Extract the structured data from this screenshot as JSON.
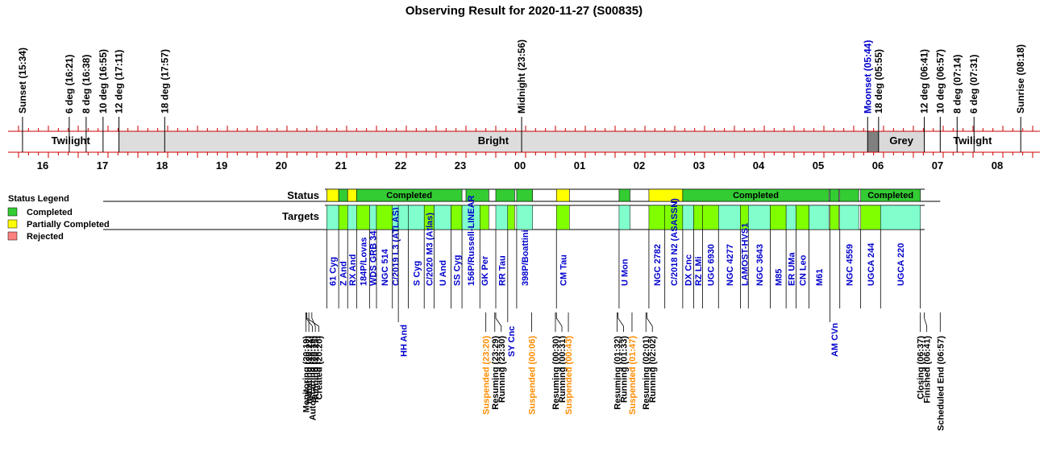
{
  "chart_data": {
    "type": "timeline",
    "title": "Observing Result for 2020-11-27 (S00835)",
    "time_axis": {
      "start": "15:34",
      "end": "08:18",
      "hour_labels": [
        "16",
        "17",
        "18",
        "19",
        "20",
        "21",
        "22",
        "23",
        "00",
        "01",
        "02",
        "03",
        "04",
        "05",
        "06",
        "07",
        "08"
      ]
    },
    "sky_events": [
      {
        "label": "Sunset (15:34)",
        "time": "15:34",
        "color": "#000000"
      },
      {
        "label": "6 deg (16:21)",
        "time": "16:21",
        "color": "#000000"
      },
      {
        "label": "8 deg (16:38)",
        "time": "16:38",
        "color": "#000000"
      },
      {
        "label": "10 deg (16:55)",
        "time": "16:55",
        "color": "#000000"
      },
      {
        "label": "12 deg (17:11)",
        "time": "17:11",
        "color": "#000000"
      },
      {
        "label": "18 deg (17:57)",
        "time": "17:57",
        "color": "#000000"
      },
      {
        "label": "Midnight (23:56)",
        "time": "23:56",
        "color": "#000000"
      },
      {
        "label": "Moonset (05:44)",
        "time": "05:44",
        "color": "#0000cc"
      },
      {
        "label": "18 deg (05:55)",
        "time": "05:55",
        "color": "#000000"
      },
      {
        "label": "12 deg (06:41)",
        "time": "06:41",
        "color": "#000000"
      },
      {
        "label": "10 deg (06:57)",
        "time": "06:57",
        "color": "#000000"
      },
      {
        "label": "8 deg (07:14)",
        "time": "07:14",
        "color": "#000000"
      },
      {
        "label": "6 deg (07:31)",
        "time": "07:31",
        "color": "#000000"
      },
      {
        "label": "Sunrise (08:18)",
        "time": "08:18",
        "color": "#000000"
      }
    ],
    "sky_phases": [
      {
        "label": "Twilight",
        "start": "15:34",
        "end": "17:11",
        "color": "#ffffff"
      },
      {
        "label": "Bright",
        "start": "17:11",
        "end": "05:44",
        "color": "#dddddd"
      },
      {
        "label": "",
        "start": "05:44",
        "end": "05:55",
        "color": "#808080"
      },
      {
        "label": "Grey",
        "start": "05:55",
        "end": "06:41",
        "color": "#d9d9d9"
      },
      {
        "label": "Twilight",
        "start": "06:41",
        "end": "08:18",
        "color": "#ffffff"
      }
    ],
    "row_labels": {
      "status": "Status",
      "targets": "Targets"
    },
    "legend": {
      "title": "Status Legend",
      "placement": "left",
      "items": [
        {
          "label": "Completed",
          "color": "#33cc33"
        },
        {
          "label": "Partially Completed",
          "color": "#ffff00"
        },
        {
          "label": "Rejected",
          "color": "#ff8080"
        }
      ]
    },
    "status_blocks": [
      {
        "start": "20:40",
        "end": "20:52",
        "status": "Partially Completed",
        "label": ""
      },
      {
        "start": "20:52",
        "end": "21:01",
        "status": "Completed",
        "label": ""
      },
      {
        "start": "21:01",
        "end": "21:10",
        "status": "Partially Completed",
        "label": ""
      },
      {
        "start": "21:10",
        "end": "22:56",
        "status": "Completed",
        "label": "Completed"
      },
      {
        "start": "23:00",
        "end": "23:23",
        "status": "Completed",
        "label": ""
      },
      {
        "start": "23:30",
        "end": "23:49",
        "status": "Completed",
        "label": ""
      },
      {
        "start": "23:51",
        "end": "00:07",
        "status": "Completed",
        "label": ""
      },
      {
        "start": "00:31",
        "end": "00:44",
        "status": "Partially Completed",
        "label": ""
      },
      {
        "start": "01:34",
        "end": "01:45",
        "status": "Completed",
        "label": ""
      },
      {
        "start": "02:04",
        "end": "02:38",
        "status": "Partially Completed",
        "label": ""
      },
      {
        "start": "02:38",
        "end": "05:05",
        "status": "Completed",
        "label": "Completed"
      },
      {
        "start": "05:06",
        "end": "05:15",
        "status": "Completed",
        "label": ""
      },
      {
        "start": "05:16",
        "end": "05:35",
        "status": "Completed",
        "label": ""
      },
      {
        "start": "05:37",
        "end": "06:37",
        "status": "Completed",
        "label": "Completed"
      }
    ],
    "targets": [
      {
        "name": "61 Cyg",
        "start": "20:40",
        "end": "20:52",
        "fill": "#80ffcc",
        "label_row": "upper"
      },
      {
        "name": "Z And",
        "start": "20:52",
        "end": "21:01",
        "fill": "#80ff00",
        "label_row": "upper"
      },
      {
        "name": "RX And",
        "start": "21:01",
        "end": "21:10",
        "fill": "#80ffcc",
        "label_row": "upper"
      },
      {
        "name": "184P/Lovas",
        "start": "21:10",
        "end": "21:23",
        "fill": "#80ff00",
        "label_row": "upper"
      },
      {
        "name": "WDS GRB 34",
        "start": "21:23",
        "end": "21:30",
        "fill": "#80ffcc",
        "label_row": "upper"
      },
      {
        "name": "NGC 514",
        "start": "21:30",
        "end": "21:46",
        "fill": "#80ff00",
        "label_row": "upper"
      },
      {
        "name": "C/2019 L3 (ATLAS)",
        "start": "21:46",
        "end": "21:52",
        "fill": "#80ffcc",
        "label_row": "upper"
      },
      {
        "name": "HH And",
        "start": "21:52",
        "end": "22:02",
        "fill": "#80ffcc",
        "label_row": "lower"
      },
      {
        "name": "S Cyg",
        "start": "22:02",
        "end": "22:18",
        "fill": "#80ffcc",
        "label_row": "upper"
      },
      {
        "name": "C/2020 M3 (Atlas)",
        "start": "22:18",
        "end": "22:28",
        "fill": "#80ff00",
        "label_row": "upper"
      },
      {
        "name": "U And",
        "start": "22:28",
        "end": "22:45",
        "fill": "#80ffcc",
        "label_row": "upper"
      },
      {
        "name": "SS Cyg",
        "start": "22:45",
        "end": "22:56",
        "fill": "#80ff00",
        "label_row": "upper"
      },
      {
        "name": "156P/Russell-LINEAR",
        "start": "22:56",
        "end": "23:14",
        "fill": "#80ffcc",
        "label_row": "upper"
      },
      {
        "name": "GK Per",
        "start": "23:14",
        "end": "23:23",
        "fill": "#80ff00",
        "label_row": "upper"
      },
      {
        "name": "RR Tau",
        "start": "23:30",
        "end": "23:42",
        "fill": "#80ffcc",
        "label_row": "upper"
      },
      {
        "name": "SY Cnc",
        "start": "23:42",
        "end": "23:49",
        "fill": "#80ff00",
        "label_row": "lower"
      },
      {
        "name": "398P/Boattini",
        "start": "23:51",
        "end": "00:07",
        "fill": "#80ffcc",
        "label_row": "upper"
      },
      {
        "name": "CM Tau",
        "start": "00:31",
        "end": "00:44",
        "fill": "#80ff00",
        "label_row": "upper"
      },
      {
        "name": "U Mon",
        "start": "01:34",
        "end": "01:45",
        "fill": "#80ffcc",
        "label_row": "upper"
      },
      {
        "name": "NGC 2782",
        "start": "02:04",
        "end": "02:20",
        "fill": "#80ff00",
        "label_row": "upper"
      },
      {
        "name": "C/2018 N2 (ASASSN)",
        "start": "02:20",
        "end": "02:38",
        "fill": "#80ff00",
        "label_row": "upper"
      },
      {
        "name": "DX Cnc",
        "start": "02:38",
        "end": "02:49",
        "fill": "#80ffcc",
        "label_row": "upper"
      },
      {
        "name": "RZ LMi",
        "start": "02:49",
        "end": "02:58",
        "fill": "#80ff00",
        "label_row": "upper"
      },
      {
        "name": "UGC 6930",
        "start": "02:58",
        "end": "03:14",
        "fill": "#80ff00",
        "label_row": "upper"
      },
      {
        "name": "NGC 4277",
        "start": "03:14",
        "end": "03:36",
        "fill": "#80ffcc",
        "label_row": "upper"
      },
      {
        "name": "LAMOST-HVS1",
        "start": "03:36",
        "end": "03:44",
        "fill": "#80ff00",
        "label_row": "upper"
      },
      {
        "name": "NGC 3643",
        "start": "03:44",
        "end": "04:06",
        "fill": "#80ffcc",
        "label_row": "upper"
      },
      {
        "name": "M85",
        "start": "04:06",
        "end": "04:22",
        "fill": "#80ff00",
        "label_row": "upper"
      },
      {
        "name": "ER UMa",
        "start": "04:22",
        "end": "04:32",
        "fill": "#80ffcc",
        "label_row": "upper"
      },
      {
        "name": "CN Leo",
        "start": "04:32",
        "end": "04:45",
        "fill": "#80ff00",
        "label_row": "upper"
      },
      {
        "name": "M61",
        "start": "04:45",
        "end": "05:05",
        "fill": "#80ffcc",
        "label_row": "upper"
      },
      {
        "name": "AM CVn",
        "start": "05:06",
        "end": "05:15",
        "fill": "#80ff00",
        "label_row": "lower"
      },
      {
        "name": "NGC 4559",
        "start": "05:16",
        "end": "05:35",
        "fill": "#80ffcc",
        "label_row": "upper"
      },
      {
        "name": "UGCA 244",
        "start": "05:37",
        "end": "05:57",
        "fill": "#80ff00",
        "label_row": "upper"
      },
      {
        "name": "UGCA 220",
        "start": "05:57",
        "end": "06:37",
        "fill": "#80ffcc",
        "label_row": "upper"
      }
    ],
    "events": [
      {
        "label": "Monitoring (20:19)",
        "time": "20:19",
        "color": "#000000"
      },
      {
        "label": "AutoStarting (20:19)",
        "time": "20:19",
        "color": "#000000"
      },
      {
        "label": "Created (20:20)",
        "time": "20:20",
        "color": "#000000"
      },
      {
        "label": "Initiating (20:22)",
        "time": "20:22",
        "color": "#000000"
      },
      {
        "label": "Running (20:25)",
        "time": "20:25",
        "color": "#000000"
      },
      {
        "label": "Suspended (23:20)",
        "time": "23:20",
        "color": "#ff8c00"
      },
      {
        "label": "Resuming (23:29)",
        "time": "23:29",
        "color": "#000000"
      },
      {
        "label": "Running (23:30)",
        "time": "23:30",
        "color": "#000000"
      },
      {
        "label": "Suspended (00:06)",
        "time": "00:06",
        "color": "#ff8c00"
      },
      {
        "label": "Resuming (00:30)",
        "time": "00:30",
        "color": "#000000"
      },
      {
        "label": "Running (00:31)",
        "time": "00:31",
        "color": "#000000"
      },
      {
        "label": "Suspended (00:43)",
        "time": "00:43",
        "color": "#ff8c00"
      },
      {
        "label": "Resuming (01:32)",
        "time": "01:32",
        "color": "#000000"
      },
      {
        "label": "Running (01:33)",
        "time": "01:33",
        "color": "#000000"
      },
      {
        "label": "Suspended (01:47)",
        "time": "01:47",
        "color": "#ff8c00"
      },
      {
        "label": "Resuming (02:01)",
        "time": "02:01",
        "color": "#000000"
      },
      {
        "label": "Running (02:02)",
        "time": "02:02",
        "color": "#000000"
      },
      {
        "label": "Closing (06:37)",
        "time": "06:37",
        "color": "#000000"
      },
      {
        "label": "Finished (06:41)",
        "time": "06:41",
        "color": "#000000"
      },
      {
        "label": "Scheduled End (06:57)",
        "time": "06:57",
        "color": "#000000"
      }
    ],
    "colors": {
      "axis_red": "#cc0000",
      "completed": "#33cc33",
      "partial": "#ffff00",
      "rejected": "#ff8080",
      "target_name": "#0000cc",
      "suspended": "#ff8c00"
    }
  }
}
